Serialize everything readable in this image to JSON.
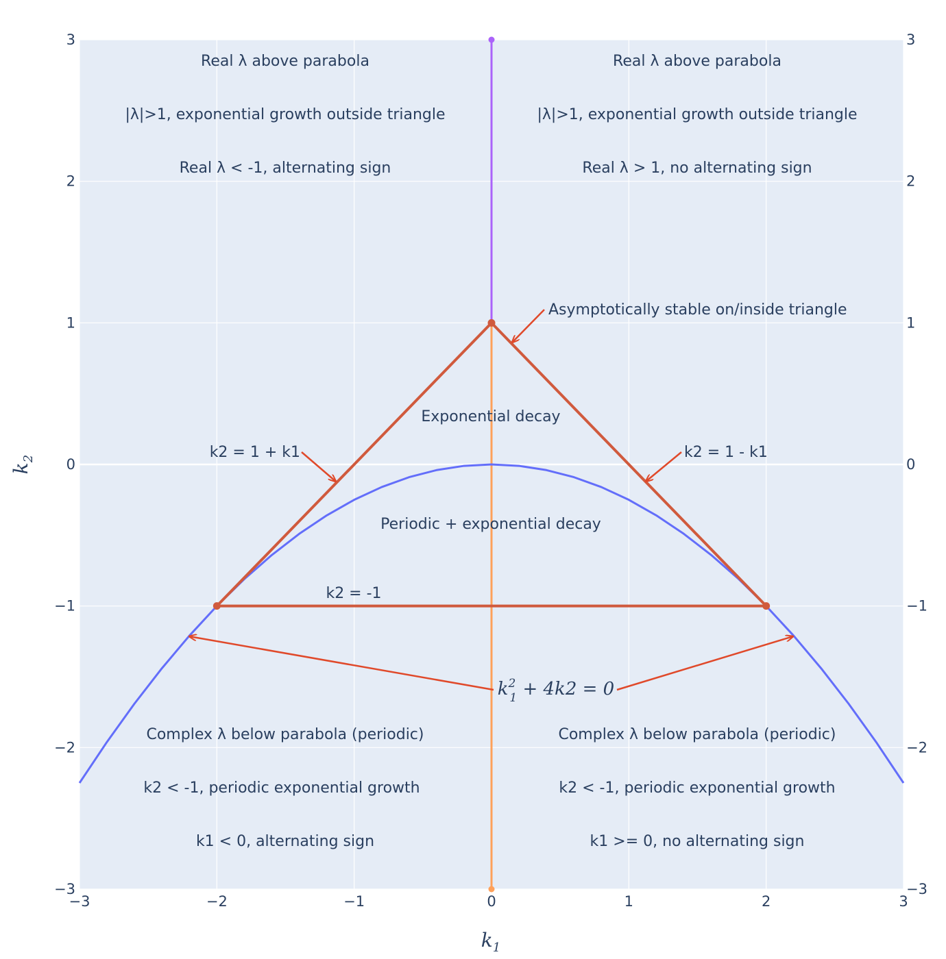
{
  "chart_data": {
    "type": "line",
    "title": "",
    "xlabel": {
      "base": "k",
      "sub": "1"
    },
    "ylabel": {
      "base": "k",
      "sub": "2"
    },
    "xlim": [
      -3,
      3
    ],
    "ylim": [
      -3,
      3
    ],
    "x_ticks": [
      -3,
      -2,
      -1,
      0,
      1,
      2,
      3
    ],
    "y_ticks": [
      -3,
      -2,
      -1,
      0,
      1,
      2,
      3
    ],
    "y_ticks_mirrored_right": true,
    "grid": true,
    "colors": {
      "plot_bg": "#e5ecf6",
      "grid": "#ffffff",
      "parabola": "#636efa",
      "triangle": "#d05a3d",
      "upper_axis_line": "#ab63fa",
      "lower_axis_line": "#ffa15a",
      "arrow": "#e0492a",
      "text": "#2a3f5f"
    },
    "series": [
      {
        "role": "parabola",
        "x": [
          -3,
          -2.8,
          -2.6,
          -2.4,
          -2.2,
          -2,
          -1.8,
          -1.6,
          -1.4,
          -1.2,
          -1,
          -0.8,
          -0.6,
          -0.4,
          -0.2,
          0,
          0.2,
          0.4,
          0.6,
          0.8,
          1,
          1.2,
          1.4,
          1.6,
          1.8,
          2,
          2.2,
          2.4,
          2.6,
          2.8,
          3
        ],
        "y": [
          -2.25,
          -1.96,
          -1.69,
          -1.44,
          -1.21,
          -1,
          -0.81,
          -0.64,
          -0.49,
          -0.36,
          -0.25,
          -0.16,
          -0.09,
          -0.04,
          -0.01,
          0,
          -0.01,
          -0.04,
          -0.09,
          -0.16,
          -0.25,
          -0.36,
          -0.49,
          -0.64,
          -0.81,
          -1,
          -1.21,
          -1.44,
          -1.69,
          -1.96,
          -2.25
        ]
      },
      {
        "role": "triangle",
        "x": [
          -2,
          0,
          2,
          -2
        ],
        "y": [
          -1,
          1,
          -1,
          -1
        ]
      },
      {
        "role": "upper_axis_line",
        "x": [
          0,
          0
        ],
        "y": [
          1,
          3
        ]
      },
      {
        "role": "lower_axis_line",
        "x": [
          0,
          0
        ],
        "y": [
          1,
          -3
        ]
      }
    ],
    "annotations": {
      "tl1": "Real λ above parabola",
      "tl2": "|λ|>1, exponential growth outside triangle",
      "tl3": "Real λ < -1, alternating sign",
      "tr1": "Real λ above parabola",
      "tr2": "|λ|>1, exponential growth outside triangle",
      "tr3": "Real λ > 1, no alternating sign",
      "stable": "Asymptotically stable on/inside triangle",
      "decay": "Exponential decay",
      "left_line": "k2 = 1 + k1",
      "right_line": "k2 = 1 - k1",
      "periodic_decay": "Periodic + exponential decay",
      "bottom_line": "k2 = -1",
      "parabola_eq": {
        "k": "k",
        "sub": "1",
        "sup": "2",
        "rest": " + 4k2 = 0"
      },
      "bl1": "Complex λ below parabola (periodic)",
      "bl2": "k2 < -1, periodic exponential growth",
      "bl3": "k1 < 0, alternating sign",
      "br1": "Complex λ below parabola (periodic)",
      "br2": "k2 < -1, periodic exponential growth",
      "br3": "k1 >= 0, no alternating sign"
    }
  }
}
